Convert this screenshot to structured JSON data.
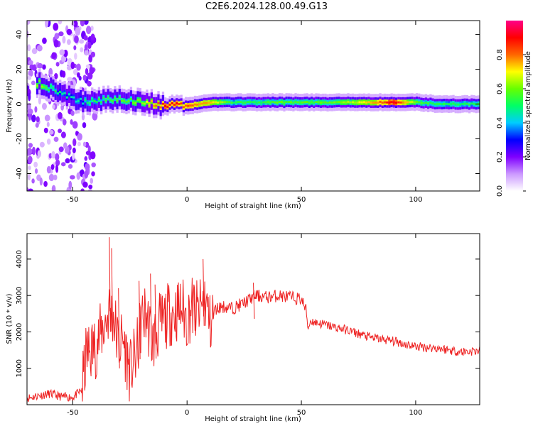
{
  "title": "C2E6.2024.128.00.49.G13",
  "chart_data": [
    {
      "type": "heatmap",
      "xlabel": "Height of straight line (km)",
      "ylabel": "Frequency (Hz)",
      "xlim": [
        -70,
        128
      ],
      "ylim": [
        -50,
        48
      ],
      "xticks": [
        -50,
        0,
        50,
        100
      ],
      "yticks": [
        -40,
        -20,
        0,
        20,
        40
      ],
      "colorbar": {
        "label": "Normalized spectral amplitude",
        "range": [
          0.0,
          1.0
        ],
        "ticks": [
          "0.0",
          "0.2",
          "0.4",
          "0.6",
          "0.8"
        ],
        "colors": [
          "#ffffff",
          "#cc99ff",
          "#7f00ff",
          "#0000ff",
          "#00ccff",
          "#00ff66",
          "#66ff00",
          "#ffff00",
          "#ff6600",
          "#ff0000",
          "#ff0088"
        ]
      },
      "ridge": {
        "x": [
          -65,
          -60,
          -55,
          -50,
          -45,
          -40,
          -35,
          -30,
          -25,
          -20,
          -15,
          -10,
          -5,
          0,
          5,
          10,
          20,
          30,
          40,
          50,
          60,
          70,
          80,
          90,
          100,
          110,
          120,
          128
        ],
        "frequency": [
          12,
          9,
          6,
          3,
          1,
          2,
          3,
          3,
          2,
          1,
          0,
          -1,
          -1,
          -1,
          0,
          1,
          1,
          1,
          1,
          1,
          1,
          1,
          1,
          1,
          1,
          0,
          0,
          0
        ],
        "amplitude": [
          0.6,
          0.5,
          0.45,
          0.4,
          0.45,
          0.5,
          0.55,
          0.55,
          0.55,
          0.6,
          0.75,
          0.85,
          0.85,
          0.8,
          0.75,
          0.7,
          0.5,
          0.5,
          0.55,
          0.55,
          0.55,
          0.6,
          0.7,
          0.9,
          0.55,
          0.5,
          0.5,
          0.5
        ]
      }
    },
    {
      "type": "line",
      "xlabel": "Height of straight line (km)",
      "ylabel": "SNR (10 * v/v)",
      "xlim": [
        -70,
        128
      ],
      "ylim": [
        0,
        4700
      ],
      "xticks": [
        -50,
        0,
        50,
        100
      ],
      "yticks": [
        1000,
        2000,
        3000,
        4000
      ],
      "color": "#ee2222",
      "x": [
        -70,
        -65,
        -60,
        -55,
        -50,
        -46,
        -44,
        -40,
        -36,
        -34,
        -32,
        -30,
        -28,
        -25,
        -22,
        -20,
        -18,
        -15,
        -12,
        -10,
        -8,
        -5,
        -2,
        0,
        2,
        5,
        8,
        10,
        12,
        15,
        20,
        25,
        30,
        35,
        40,
        45,
        50,
        52,
        53,
        54,
        57,
        60,
        70,
        80,
        90,
        100,
        110,
        120,
        128
      ],
      "y": [
        180,
        250,
        300,
        220,
        200,
        400,
        1400,
        1600,
        2200,
        2600,
        2400,
        1600,
        1800,
        900,
        1400,
        2300,
        2500,
        1700,
        2200,
        2300,
        2500,
        2550,
        2650,
        2300,
        2700,
        2500,
        2900,
        2200,
        2600,
        2700,
        2650,
        2800,
        3000,
        2950,
        3000,
        2950,
        2900,
        2600,
        2100,
        2300,
        2250,
        2200,
        2050,
        1850,
        1750,
        1600,
        1550,
        1450,
        1480
      ],
      "peaks": [
        {
          "x": -34,
          "y": 4600
        },
        {
          "x": -33,
          "y": 4300
        },
        {
          "x": -30,
          "y": 3200
        },
        {
          "x": -21,
          "y": 3400
        },
        {
          "x": -16,
          "y": 3600
        },
        {
          "x": -14,
          "y": 3300
        },
        {
          "x": 3,
          "y": 3300
        },
        {
          "x": 7,
          "y": 4000
        },
        {
          "x": 29,
          "y": 3350
        }
      ]
    }
  ]
}
